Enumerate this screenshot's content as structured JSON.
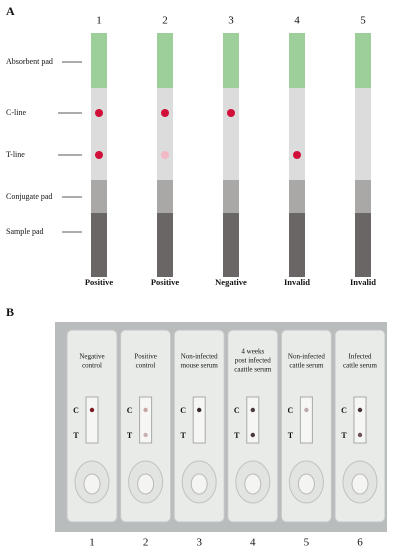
{
  "panel_a": {
    "label": "A",
    "pad_labels": [
      "Absorbent pad",
      "C-line",
      "T-line",
      "Conjugate pad",
      "Sample pad"
    ],
    "strips": [
      {
        "number": "1",
        "result": "Positive"
      },
      {
        "number": "2",
        "result": "Positive"
      },
      {
        "number": "3",
        "result": "Negative"
      },
      {
        "number": "4",
        "result": "Invalid"
      },
      {
        "number": "5",
        "result": "Invalid"
      }
    ]
  },
  "panel_b": {
    "label": "B",
    "cassettes": [
      {
        "number": "1",
        "caption": [
          "Negative",
          "control"
        ],
        "c_label": "C",
        "t_label": "T"
      },
      {
        "number": "2",
        "caption": [
          "Positive",
          "control"
        ],
        "c_label": "C",
        "t_label": "T"
      },
      {
        "number": "3",
        "caption": [
          "Non-infected",
          "mouse serum"
        ],
        "c_label": "C",
        "t_label": "T"
      },
      {
        "number": "4",
        "caption": [
          "4 weeks",
          "post infected",
          "caattle serum"
        ],
        "c_label": "C",
        "t_label": "T"
      },
      {
        "number": "5",
        "caption": [
          "Non-infected",
          "cattle serum"
        ],
        "c_label": "C",
        "t_label": "T"
      },
      {
        "number": "6",
        "caption": [
          "Infected",
          "cattle serum"
        ],
        "c_label": "C",
        "t_label": "T"
      }
    ]
  }
}
